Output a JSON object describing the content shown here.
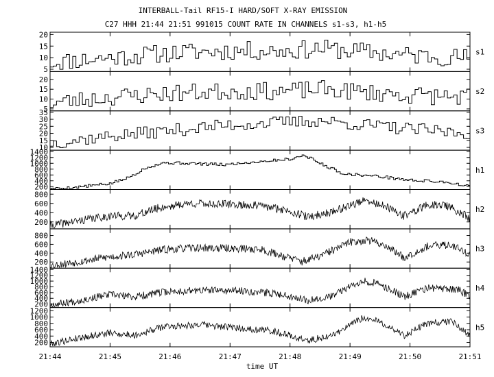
{
  "chart_data": {
    "type": "line",
    "title": "INTERBALL-Tail RF15-I HARD/SOFT X-RAY EMISSION",
    "subtitle": "C27 HHH 21:44 21:51 991015  COUNT RATE IN CHANNELS s1-s3, h1-h5",
    "xlabel": "time UT",
    "x_ticks": [
      "21:44",
      "21:45",
      "21:46",
      "21:47",
      "21:48",
      "21:49",
      "21:50",
      "21:51"
    ],
    "x_range_min": [
      0,
      7
    ],
    "panels": [
      {
        "channel": "s1",
        "style": "step",
        "y_ticks": [
          "20",
          "15",
          "10",
          "5"
        ],
        "y_tick_values": [
          20,
          15,
          10,
          5
        ],
        "ylim": [
          4,
          21
        ],
        "trend": [
          [
            0,
            8
          ],
          [
            1,
            10
          ],
          [
            2,
            12
          ],
          [
            3,
            13
          ],
          [
            4,
            13
          ],
          [
            4.5,
            14
          ],
          [
            5,
            13
          ],
          [
            6,
            11
          ],
          [
            7,
            10
          ]
        ],
        "spread": 4,
        "bins": 130,
        "seed": 11
      },
      {
        "channel": "s2",
        "style": "step",
        "y_ticks": [
          "20",
          "15",
          "10",
          "5"
        ],
        "y_tick_values": [
          20,
          15,
          10,
          5
        ],
        "ylim": [
          4,
          24
        ],
        "trend": [
          [
            0,
            8
          ],
          [
            1,
            11
          ],
          [
            2,
            13
          ],
          [
            3,
            14
          ],
          [
            4,
            14
          ],
          [
            4.5,
            15
          ],
          [
            5,
            14
          ],
          [
            6,
            12
          ],
          [
            7,
            11
          ]
        ],
        "spread": 4.5,
        "bins": 130,
        "seed": 23
      },
      {
        "channel": "s3",
        "style": "step",
        "y_ticks": [
          "35",
          "30",
          "25",
          "20",
          "15",
          "10"
        ],
        "y_tick_values": [
          35,
          30,
          25,
          20,
          15,
          10
        ],
        "ylim": [
          8,
          36
        ],
        "trend": [
          [
            0,
            13
          ],
          [
            1,
            18
          ],
          [
            2,
            22
          ],
          [
            3,
            26
          ],
          [
            4,
            28
          ],
          [
            4.5,
            29
          ],
          [
            5,
            27
          ],
          [
            6,
            23
          ],
          [
            7,
            20
          ]
        ],
        "spread": 4.5,
        "bins": 130,
        "seed": 37
      },
      {
        "channel": "h1",
        "style": "step",
        "y_ticks": [
          "1400",
          "1200",
          "1000",
          "800",
          "600",
          "400",
          "200"
        ],
        "y_tick_values": [
          1400,
          1200,
          1000,
          800,
          600,
          400,
          200
        ],
        "ylim": [
          100,
          1450
        ],
        "trend": [
          [
            0,
            120
          ],
          [
            0.4,
            170
          ],
          [
            1.0,
            300
          ],
          [
            1.3,
            500
          ],
          [
            1.6,
            850
          ],
          [
            1.9,
            1020
          ],
          [
            2.3,
            1000
          ],
          [
            2.9,
            950
          ],
          [
            3.6,
            1080
          ],
          [
            4.0,
            1150
          ],
          [
            4.25,
            1280
          ],
          [
            4.5,
            1000
          ],
          [
            4.9,
            640
          ],
          [
            5.5,
            550
          ],
          [
            6.0,
            420
          ],
          [
            6.6,
            360
          ],
          [
            7.0,
            200
          ]
        ],
        "spread": 50,
        "bins": 220,
        "seed": 5
      },
      {
        "channel": "h2",
        "style": "noisy",
        "y_ticks": [
          "800",
          "600",
          "400",
          "200"
        ],
        "y_tick_values": [
          800,
          600,
          400,
          200
        ],
        "ylim": [
          50,
          900
        ],
        "trend": [
          [
            0,
            120
          ],
          [
            0.5,
            230
          ],
          [
            1.0,
            330
          ],
          [
            1.4,
            330
          ],
          [
            1.8,
            500
          ],
          [
            2.3,
            600
          ],
          [
            3.0,
            580
          ],
          [
            3.5,
            550
          ],
          [
            4.0,
            440
          ],
          [
            4.3,
            300
          ],
          [
            4.7,
            420
          ],
          [
            5.2,
            650
          ],
          [
            5.5,
            580
          ],
          [
            5.9,
            330
          ],
          [
            6.3,
            570
          ],
          [
            6.6,
            560
          ],
          [
            7.0,
            280
          ]
        ],
        "spread": 90,
        "bins": 620,
        "seed": 41
      },
      {
        "channel": "h3",
        "style": "noisy",
        "y_ticks": [
          "800",
          "600",
          "400",
          "200"
        ],
        "y_tick_values": [
          800,
          600,
          400,
          200
        ],
        "ylim": [
          60,
          950
        ],
        "trend": [
          [
            0,
            120
          ],
          [
            0.4,
            190
          ],
          [
            0.9,
            300
          ],
          [
            1.4,
            370
          ],
          [
            1.9,
            480
          ],
          [
            2.4,
            520
          ],
          [
            3.0,
            510
          ],
          [
            3.5,
            490
          ],
          [
            3.9,
            330
          ],
          [
            4.2,
            210
          ],
          [
            4.5,
            330
          ],
          [
            5.0,
            650
          ],
          [
            5.3,
            700
          ],
          [
            5.6,
            570
          ],
          [
            5.9,
            300
          ],
          [
            6.3,
            560
          ],
          [
            6.7,
            590
          ],
          [
            7.0,
            370
          ]
        ],
        "spread": 90,
        "bins": 620,
        "seed": 53
      },
      {
        "channel": "h4",
        "style": "noisy",
        "y_ticks": [
          "1400",
          "1200",
          "1000",
          "800",
          "600",
          "400",
          "200"
        ],
        "y_tick_values": [
          1400,
          1200,
          1000,
          800,
          600,
          400,
          200
        ],
        "ylim": [
          80,
          1450
        ],
        "trend": [
          [
            0,
            170
          ],
          [
            0.5,
            330
          ],
          [
            1.0,
            530
          ],
          [
            1.4,
            450
          ],
          [
            1.9,
            620
          ],
          [
            2.5,
            680
          ],
          [
            3.2,
            660
          ],
          [
            3.8,
            560
          ],
          [
            4.3,
            340
          ],
          [
            4.7,
            480
          ],
          [
            5.2,
            1030
          ],
          [
            5.5,
            880
          ],
          [
            5.9,
            460
          ],
          [
            6.3,
            760
          ],
          [
            6.8,
            700
          ],
          [
            7.0,
            480
          ]
        ],
        "spread": 130,
        "bins": 620,
        "seed": 67
      },
      {
        "channel": "h5",
        "style": "noisy",
        "y_ticks": [
          "1200",
          "1000",
          "800",
          "600",
          "400",
          "200"
        ],
        "y_tick_values": [
          1200,
          1000,
          800,
          600,
          400,
          200
        ],
        "ylim": [
          60,
          1300
        ],
        "trend": [
          [
            0,
            150
          ],
          [
            0.5,
            350
          ],
          [
            1.0,
            500
          ],
          [
            1.4,
            420
          ],
          [
            1.9,
            700
          ],
          [
            2.5,
            760
          ],
          [
            3.2,
            640
          ],
          [
            3.7,
            570
          ],
          [
            4.3,
            250
          ],
          [
            4.7,
            420
          ],
          [
            5.2,
            960
          ],
          [
            5.5,
            850
          ],
          [
            5.9,
            420
          ],
          [
            6.3,
            800
          ],
          [
            6.7,
            860
          ],
          [
            7.0,
            420
          ]
        ],
        "spread": 110,
        "bins": 620,
        "seed": 79
      }
    ],
    "grid": false,
    "colors": {
      "line": "#000000",
      "background": "#ffffff"
    }
  }
}
